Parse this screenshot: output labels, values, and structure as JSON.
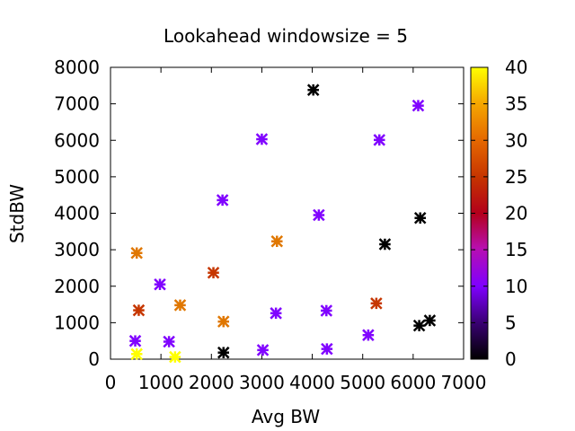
{
  "chart_data": {
    "type": "scatter",
    "title": "Lookahead windowsize = 5",
    "xlabel": "Avg BW",
    "ylabel": "StdBW",
    "xlim": [
      0,
      7000
    ],
    "ylim": [
      0,
      8000
    ],
    "x_ticks": [
      0,
      1000,
      2000,
      3000,
      4000,
      5000,
      6000,
      7000
    ],
    "y_ticks": [
      0,
      1000,
      2000,
      3000,
      4000,
      5000,
      6000,
      7000,
      8000
    ],
    "colorbar": {
      "range": [
        0,
        40
      ],
      "ticks": [
        0,
        5,
        10,
        15,
        20,
        25,
        30,
        35,
        40
      ],
      "palette": "gnuplot (black-purple-red-orange-yellow)"
    },
    "marker": "asterisk",
    "grid": false,
    "points": [
      {
        "x": 4020,
        "y": 7380,
        "c": 0
      },
      {
        "x": 6100,
        "y": 6950,
        "c": 10
      },
      {
        "x": 3000,
        "y": 6030,
        "c": 10
      },
      {
        "x": 5330,
        "y": 6010,
        "c": 10
      },
      {
        "x": 2220,
        "y": 4360,
        "c": 10
      },
      {
        "x": 4130,
        "y": 3950,
        "c": 10
      },
      {
        "x": 6140,
        "y": 3870,
        "c": 0
      },
      {
        "x": 3300,
        "y": 3230,
        "c": 31
      },
      {
        "x": 5440,
        "y": 3150,
        "c": 0
      },
      {
        "x": 520,
        "y": 2910,
        "c": 31
      },
      {
        "x": 2040,
        "y": 2370,
        "c": 24
      },
      {
        "x": 980,
        "y": 2050,
        "c": 10
      },
      {
        "x": 1380,
        "y": 1480,
        "c": 31
      },
      {
        "x": 5270,
        "y": 1530,
        "c": 24
      },
      {
        "x": 560,
        "y": 1340,
        "c": 24
      },
      {
        "x": 4280,
        "y": 1330,
        "c": 10
      },
      {
        "x": 3280,
        "y": 1260,
        "c": 10
      },
      {
        "x": 2240,
        "y": 1030,
        "c": 31
      },
      {
        "x": 6330,
        "y": 1060,
        "c": 0
      },
      {
        "x": 6120,
        "y": 920,
        "c": 0
      },
      {
        "x": 5110,
        "y": 660,
        "c": 10
      },
      {
        "x": 490,
        "y": 500,
        "c": 10
      },
      {
        "x": 1160,
        "y": 480,
        "c": 10
      },
      {
        "x": 3020,
        "y": 250,
        "c": 10
      },
      {
        "x": 4290,
        "y": 280,
        "c": 10
      },
      {
        "x": 2240,
        "y": 180,
        "c": 0
      },
      {
        "x": 520,
        "y": 140,
        "c": 40
      },
      {
        "x": 1280,
        "y": 60,
        "c": 40
      }
    ]
  }
}
